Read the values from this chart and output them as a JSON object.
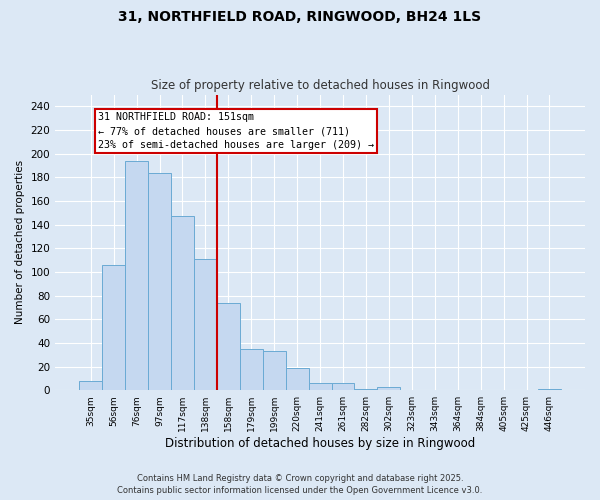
{
  "title": "31, NORTHFIELD ROAD, RINGWOOD, BH24 1LS",
  "subtitle": "Size of property relative to detached houses in Ringwood",
  "xlabel": "Distribution of detached houses by size in Ringwood",
  "ylabel": "Number of detached properties",
  "footer_line1": "Contains HM Land Registry data © Crown copyright and database right 2025.",
  "footer_line2": "Contains public sector information licensed under the Open Government Licence v3.0.",
  "bar_labels": [
    "35sqm",
    "56sqm",
    "76sqm",
    "97sqm",
    "117sqm",
    "138sqm",
    "158sqm",
    "179sqm",
    "199sqm",
    "220sqm",
    "241sqm",
    "261sqm",
    "282sqm",
    "302sqm",
    "323sqm",
    "343sqm",
    "364sqm",
    "384sqm",
    "405sqm",
    "425sqm",
    "446sqm"
  ],
  "bar_values": [
    8,
    106,
    194,
    184,
    147,
    111,
    74,
    35,
    33,
    19,
    6,
    6,
    1,
    3,
    0,
    0,
    0,
    0,
    0,
    0,
    1
  ],
  "bar_color": "#c5d8f0",
  "bar_edge_color": "#6aaad4",
  "property_line_bin": 5,
  "property_sqm": 151,
  "annotation_text_line1": "31 NORTHFIELD ROAD: 151sqm",
  "annotation_text_line2": "← 77% of detached houses are smaller (711)",
  "annotation_text_line3": "23% of semi-detached houses are larger (209) →",
  "annotation_box_color": "#ffffff",
  "annotation_border_color": "#cc0000",
  "property_line_color": "#cc0000",
  "bg_color": "#dce8f5",
  "grid_color": "#ffffff",
  "ylim": [
    0,
    250
  ],
  "yticks": [
    0,
    20,
    40,
    60,
    80,
    100,
    120,
    140,
    160,
    180,
    200,
    220,
    240
  ]
}
